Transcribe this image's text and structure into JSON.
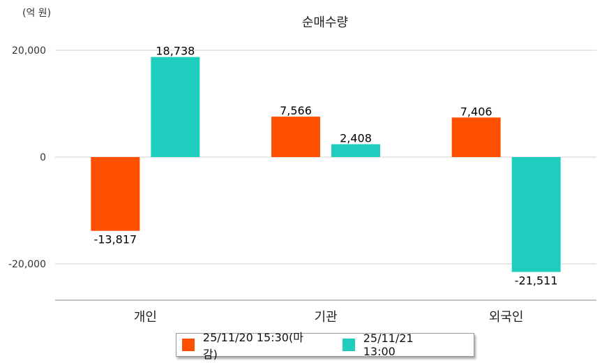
{
  "chart_data": {
    "type": "bar",
    "title": "순매수량",
    "unit_label": "(억 원)",
    "categories": [
      "개인",
      "기관",
      "외국인"
    ],
    "series": [
      {
        "name": "25/11/20 15:30(마감)",
        "color": "#ff5000",
        "values": [
          -13817,
          7566,
          7406
        ],
        "labels": [
          "-13,817",
          "7,566",
          "7,406"
        ]
      },
      {
        "name": "25/11/21 13:00",
        "color": "#1ecdbe",
        "values": [
          18738,
          2408,
          -21511
        ],
        "labels": [
          "18,738",
          "2,408",
          "-21,511"
        ]
      }
    ],
    "yticks": [
      20000,
      0,
      -20000
    ],
    "ytick_labels": [
      "20,000",
      "0",
      "-20,000"
    ],
    "ylim": [
      -26500,
      20000
    ],
    "grid": true,
    "legend_position": "bottom-center"
  }
}
